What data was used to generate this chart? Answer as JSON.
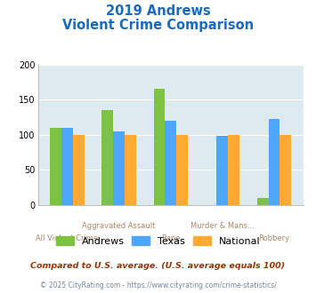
{
  "title_line1": "2019 Andrews",
  "title_line2": "Violent Crime Comparison",
  "top_labels": [
    "",
    "Aggravated Assault",
    "",
    "Murder & Mans...",
    ""
  ],
  "bottom_labels": [
    "All Violent Crime",
    "",
    "Rape",
    "",
    "Robbery"
  ],
  "andrews": [
    110,
    135,
    165,
    0,
    10
  ],
  "texas": [
    110,
    105,
    120,
    98,
    122
  ],
  "national": [
    100,
    100,
    100,
    100,
    100
  ],
  "color_andrews": "#7dc242",
  "color_texas": "#4da6ff",
  "color_national": "#ffaa33",
  "color_title": "#1a6abf",
  "color_xticklabel": "#aa8866",
  "color_bg": "#ddeaf0",
  "color_footer1": "#993300",
  "color_footer2": "#778899",
  "ylim": [
    0,
    200
  ],
  "yticks": [
    0,
    50,
    100,
    150,
    200
  ],
  "bar_width": 0.22,
  "footer1": "Compared to U.S. average. (U.S. average equals 100)",
  "footer2": "© 2025 CityRating.com - https://www.cityrating.com/crime-statistics/"
}
